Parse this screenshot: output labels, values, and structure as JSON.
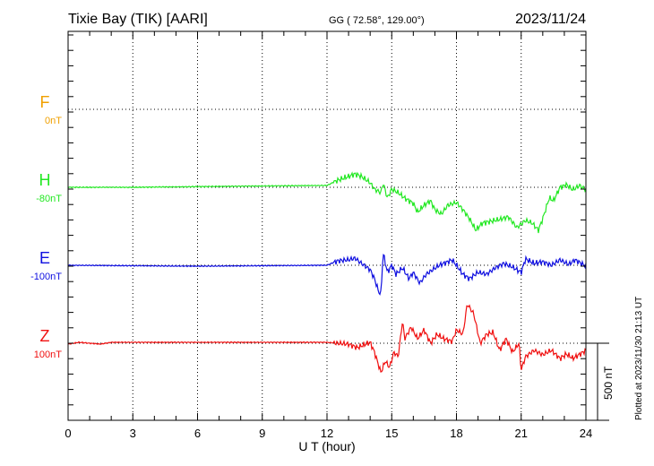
{
  "header": {
    "station": "Tixie Bay (TIK)  [AARI]",
    "coords": "GG ( 72.58°, 129.00°)",
    "date": "2023/11/24"
  },
  "footer": {
    "plotted": "Plotted at 2023/11/30 21:13 UT",
    "scale_label": "500 nT"
  },
  "chart_data": {
    "type": "line",
    "xlabel": "U T (hour)",
    "xlim": [
      0,
      24
    ],
    "xticks": [
      "0",
      "3",
      "6",
      "9",
      "12",
      "15",
      "18",
      "21",
      "24"
    ],
    "scale_nT_per_bar": 500,
    "series": [
      {
        "name": "F",
        "offset_label": "0nT",
        "color": "#f0a000",
        "x": [],
        "values": []
      },
      {
        "name": "H",
        "offset_label": "-80nT",
        "color": "#22e822",
        "x": [
          0,
          3,
          7,
          12,
          12.5,
          13,
          13.3,
          13.6,
          14,
          14.2,
          14.5,
          14.6,
          14.8,
          15,
          15.3,
          15.6,
          16,
          16.2,
          16.5,
          16.8,
          17,
          17.3,
          17.6,
          18,
          18.3,
          18.6,
          18.9,
          19.2,
          19.6,
          20,
          20.4,
          20.8,
          21.2,
          21.5,
          21.8,
          22,
          22.3,
          22.5,
          22.8,
          23.1,
          23.4,
          23.7,
          24
        ],
        "values": [
          0,
          0,
          6,
          12,
          46,
          70,
          87,
          70,
          29,
          -12,
          -35,
          29,
          -70,
          -12,
          -35,
          -70,
          -104,
          -162,
          -116,
          -87,
          -145,
          -174,
          -116,
          -99,
          -145,
          -203,
          -278,
          -232,
          -220,
          -209,
          -191,
          -261,
          -215,
          -232,
          -278,
          -203,
          -70,
          -87,
          0,
          17,
          -17,
          12,
          -17
        ]
      },
      {
        "name": "E",
        "offset_label": "-100nT",
        "color": "#1010e0",
        "x": [
          0,
          6,
          12,
          12.5,
          13,
          13.3,
          13.6,
          14,
          14.2,
          14.4,
          14.5,
          14.6,
          14.8,
          15,
          15.2,
          15.5,
          15.8,
          16,
          16.3,
          16.6,
          16.9,
          17.2,
          17.5,
          17.8,
          18,
          18.3,
          18.6,
          19,
          19.4,
          19.8,
          20.2,
          20.6,
          21,
          21.2,
          21.6,
          22,
          22.4,
          22.8,
          23.2,
          23.5,
          24
        ],
        "values": [
          0,
          -6,
          0,
          29,
          35,
          46,
          12,
          -29,
          -87,
          -174,
          -186,
          81,
          -46,
          0,
          -58,
          -17,
          -87,
          -46,
          -116,
          -58,
          -29,
          0,
          17,
          35,
          0,
          -58,
          -87,
          -46,
          -58,
          -17,
          12,
          -12,
          -46,
          41,
          12,
          23,
          0,
          35,
          6,
          35,
          -6
        ]
      },
      {
        "name": "Z",
        "offset_label": "100nT",
        "color": "#f01010",
        "x": [
          0,
          0.5,
          1,
          1.5,
          2,
          12,
          12.5,
          13,
          13.4,
          13.8,
          14,
          14.2,
          14.5,
          14.7,
          14.9,
          15.1,
          15.3,
          15.5,
          15.6,
          15.9,
          16.2,
          16.5,
          16.8,
          17.1,
          17.4,
          17.8,
          18,
          18.3,
          18.5,
          18.8,
          19.1,
          19.4,
          19.7,
          20,
          20.3,
          20.6,
          20.9,
          21,
          21.2,
          21.6,
          22,
          22.4,
          22.8,
          23.1,
          23.4,
          23.8,
          24
        ],
        "values": [
          -6,
          6,
          0,
          -6,
          6,
          6,
          0,
          -6,
          -29,
          -6,
          6,
          -58,
          -191,
          -116,
          -157,
          -58,
          -87,
          145,
          29,
          104,
          29,
          87,
          0,
          58,
          29,
          12,
          87,
          58,
          255,
          191,
          0,
          58,
          70,
          -46,
          29,
          -58,
          0,
          -174,
          -87,
          -46,
          -75,
          -46,
          -99,
          -70,
          -99,
          -64,
          -46
        ]
      }
    ]
  }
}
